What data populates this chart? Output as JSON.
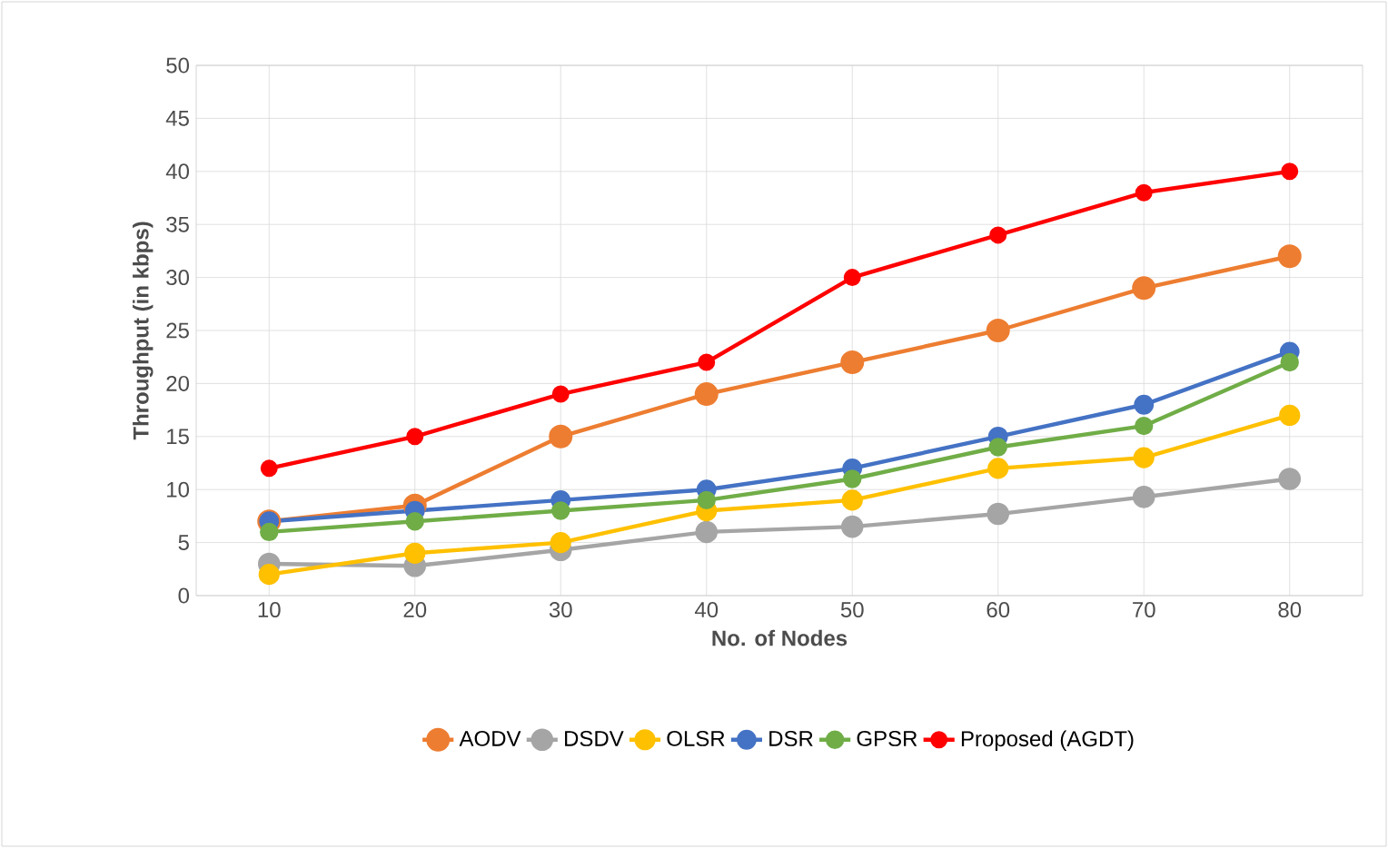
{
  "chart_data": {
    "type": "line",
    "xlabel": "No. of Nodes",
    "ylabel": "Throughput  (in kbps)",
    "categories": [
      "10",
      "20",
      "30",
      "40",
      "50",
      "60",
      "70",
      "80"
    ],
    "series": [
      {
        "name": "AODV",
        "color": "#ed7d31",
        "values": [
          7,
          8.5,
          15,
          19,
          22,
          25,
          29,
          32
        ]
      },
      {
        "name": "DSDV",
        "color": "#a5a5a5",
        "values": [
          3,
          2.8,
          4.3,
          6,
          6.5,
          7.7,
          9.3,
          11
        ]
      },
      {
        "name": "OLSR",
        "color": "#ffc000",
        "values": [
          2,
          4,
          5,
          8,
          9,
          12,
          13,
          17
        ]
      },
      {
        "name": "DSR",
        "color": "#4472c4",
        "values": [
          7,
          8,
          9,
          10,
          12,
          15,
          18,
          23
        ]
      },
      {
        "name": "GPSR",
        "color": "#70ad47",
        "values": [
          6,
          7,
          8,
          9,
          11,
          14,
          16,
          22
        ]
      },
      {
        "name": "Proposed (AGDT)",
        "color": "#ff0000",
        "values": [
          12,
          15,
          19,
          22,
          30,
          34,
          38,
          40
        ]
      }
    ],
    "ylim": [
      0,
      50
    ],
    "yticks": [
      0,
      5,
      10,
      15,
      20,
      25,
      30,
      35,
      40,
      45,
      50
    ],
    "grid": true,
    "legend": "bottom",
    "marker": "circle",
    "line_style": "solid"
  }
}
